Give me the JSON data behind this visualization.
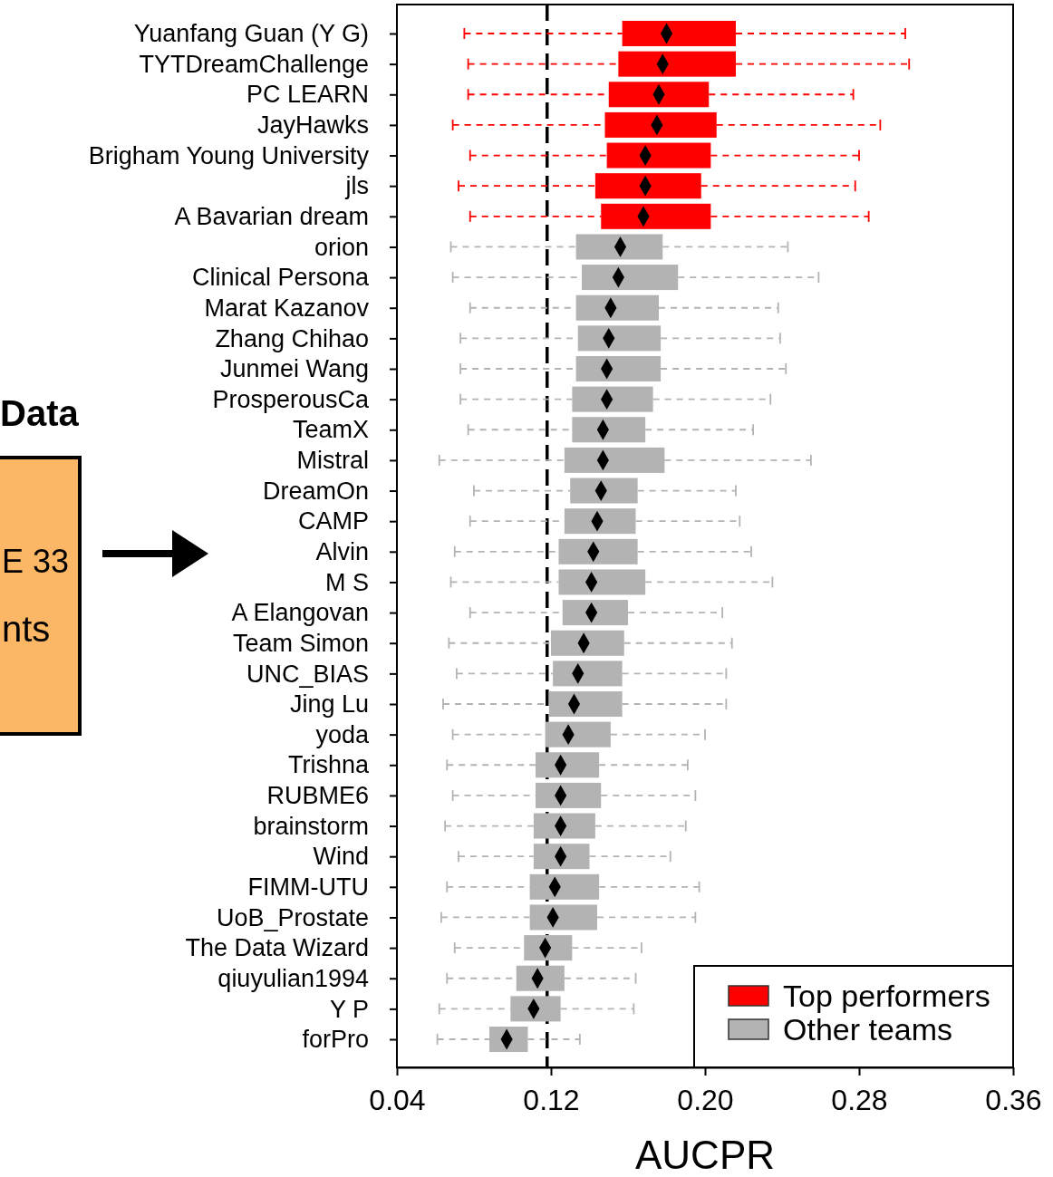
{
  "chart_data": {
    "type": "box",
    "orientation": "horizontal",
    "xlabel": "AUCPR",
    "xlim": [
      0.04,
      0.36
    ],
    "xticks": [
      {
        "value": 0.04,
        "label": "0.04"
      },
      {
        "value": 0.12,
        "label": "0.12"
      },
      {
        "value": 0.2,
        "label": "0.20"
      },
      {
        "value": 0.28,
        "label": "0.28"
      },
      {
        "value": 0.36,
        "label": "0.36"
      }
    ],
    "legend": "bottom right",
    "marker": "diamond",
    "line_style": "dashed",
    "categories": [
      "Yuanfang Guan (Y G)",
      "TYTDreamChallenge",
      "PC LEARN",
      "JayHawks",
      "Brigham Young University",
      "jls",
      "A Bavarian dream",
      "orion",
      "Clinical Persona",
      "Marat Kazanov",
      "Zhang Chihao",
      "Junmei Wang",
      "ProsperousCa",
      "TeamX",
      "Mistral",
      "DreamOn",
      "CAMP",
      "Alvin",
      "M S",
      "A Elangovan",
      "Team Simon",
      "UNC_BIAS",
      "Jing Lu",
      "yoda",
      "Trishna",
      "RUBME6",
      "brainstorm",
      "Wind",
      "FIMM-UTU",
      "UoB_Prostate",
      "The Data Wizard",
      "qiuyulian1994",
      "Y P",
      "forPro"
    ],
    "series": [
      {
        "name": "Top performers",
        "color": "#ff0000",
        "boxes": [
          {
            "low": 0.075,
            "q1": 0.157,
            "median": 0.18,
            "q3": 0.216,
            "high": 0.304
          },
          {
            "low": 0.077,
            "q1": 0.155,
            "median": 0.178,
            "q3": 0.216,
            "high": 0.306
          },
          {
            "low": 0.077,
            "q1": 0.15,
            "median": 0.176,
            "q3": 0.202,
            "high": 0.277
          },
          {
            "low": 0.069,
            "q1": 0.148,
            "median": 0.175,
            "q3": 0.206,
            "high": 0.291
          },
          {
            "low": 0.078,
            "q1": 0.149,
            "median": 0.169,
            "q3": 0.203,
            "high": 0.28
          },
          {
            "low": 0.072,
            "q1": 0.143,
            "median": 0.169,
            "q3": 0.198,
            "high": 0.278
          },
          {
            "low": 0.078,
            "q1": 0.146,
            "median": 0.168,
            "q3": 0.203,
            "high": 0.285
          },
          null,
          null,
          null,
          null,
          null,
          null,
          null,
          null,
          null,
          null,
          null,
          null,
          null,
          null,
          null,
          null,
          null,
          null,
          null,
          null,
          null,
          null,
          null,
          null,
          null,
          null,
          null
        ]
      },
      {
        "name": "Other teams",
        "color": "#b3b3b3",
        "boxes": [
          null,
          null,
          null,
          null,
          null,
          null,
          null,
          {
            "low": 0.068,
            "q1": 0.133,
            "median": 0.156,
            "q3": 0.178,
            "high": 0.243
          },
          {
            "low": 0.069,
            "q1": 0.136,
            "median": 0.155,
            "q3": 0.186,
            "high": 0.259
          },
          {
            "low": 0.078,
            "q1": 0.133,
            "median": 0.151,
            "q3": 0.176,
            "high": 0.238
          },
          {
            "low": 0.073,
            "q1": 0.134,
            "median": 0.15,
            "q3": 0.177,
            "high": 0.239
          },
          {
            "low": 0.073,
            "q1": 0.133,
            "median": 0.149,
            "q3": 0.177,
            "high": 0.242
          },
          {
            "low": 0.073,
            "q1": 0.131,
            "median": 0.149,
            "q3": 0.173,
            "high": 0.234
          },
          {
            "low": 0.077,
            "q1": 0.131,
            "median": 0.147,
            "q3": 0.169,
            "high": 0.225
          },
          {
            "low": 0.062,
            "q1": 0.127,
            "median": 0.147,
            "q3": 0.179,
            "high": 0.255
          },
          {
            "low": 0.08,
            "q1": 0.13,
            "median": 0.146,
            "q3": 0.165,
            "high": 0.216
          },
          {
            "low": 0.078,
            "q1": 0.127,
            "median": 0.144,
            "q3": 0.164,
            "high": 0.218
          },
          {
            "low": 0.07,
            "q1": 0.124,
            "median": 0.142,
            "q3": 0.165,
            "high": 0.224
          },
          {
            "low": 0.068,
            "q1": 0.124,
            "median": 0.141,
            "q3": 0.169,
            "high": 0.235
          },
          {
            "low": 0.078,
            "q1": 0.126,
            "median": 0.141,
            "q3": 0.16,
            "high": 0.209
          },
          {
            "low": 0.067,
            "q1": 0.12,
            "median": 0.137,
            "q3": 0.158,
            "high": 0.214
          },
          {
            "low": 0.071,
            "q1": 0.121,
            "median": 0.134,
            "q3": 0.157,
            "high": 0.211
          },
          {
            "low": 0.064,
            "q1": 0.119,
            "median": 0.132,
            "q3": 0.157,
            "high": 0.211
          },
          {
            "low": 0.069,
            "q1": 0.117,
            "median": 0.129,
            "q3": 0.151,
            "high": 0.2
          },
          {
            "low": 0.066,
            "q1": 0.112,
            "median": 0.125,
            "q3": 0.145,
            "high": 0.191
          },
          {
            "low": 0.069,
            "q1": 0.112,
            "median": 0.125,
            "q3": 0.146,
            "high": 0.195
          },
          {
            "low": 0.065,
            "q1": 0.111,
            "median": 0.125,
            "q3": 0.143,
            "high": 0.19
          },
          {
            "low": 0.072,
            "q1": 0.111,
            "median": 0.125,
            "q3": 0.14,
            "high": 0.182
          },
          {
            "low": 0.066,
            "q1": 0.109,
            "median": 0.122,
            "q3": 0.145,
            "high": 0.197
          },
          {
            "low": 0.063,
            "q1": 0.109,
            "median": 0.121,
            "q3": 0.144,
            "high": 0.195
          },
          {
            "low": 0.07,
            "q1": 0.106,
            "median": 0.117,
            "q3": 0.131,
            "high": 0.167
          },
          {
            "low": 0.066,
            "q1": 0.102,
            "median": 0.113,
            "q3": 0.127,
            "high": 0.164
          },
          {
            "low": 0.062,
            "q1": 0.099,
            "median": 0.111,
            "q3": 0.125,
            "high": 0.163
          },
          {
            "low": 0.061,
            "q1": 0.088,
            "median": 0.097,
            "q3": 0.108,
            "high": 0.135
          }
        ]
      }
    ],
    "ref_lines": [
      {
        "axis": "x",
        "value": 0.118,
        "color": "#000000",
        "line_style": "dashed"
      }
    ],
    "annotations": [
      "Data",
      "E 33",
      "nts"
    ]
  }
}
